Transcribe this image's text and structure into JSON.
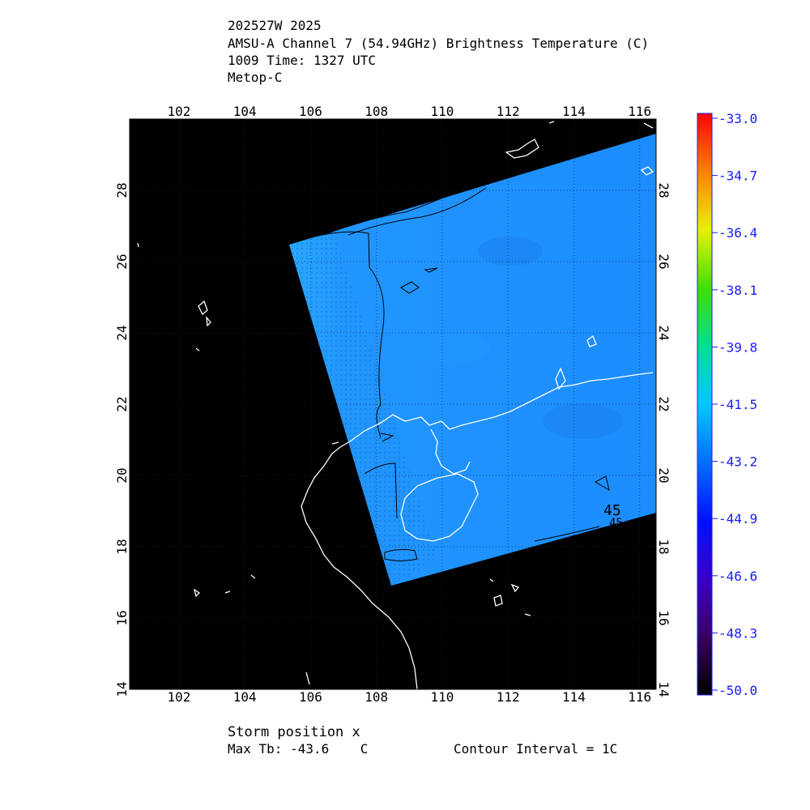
{
  "header": {
    "storm_id": "202527W 2025",
    "product": "AMSU-A Channel 7 (54.94GHz) Brightness Temperature (C)",
    "time": "1009 Time: 1327 UTC",
    "satellite": "Metop-C"
  },
  "map": {
    "lon_range": [
      100.5,
      116.5
    ],
    "lat_range": [
      14,
      30
    ],
    "lon_ticks": [
      "102",
      "104",
      "106",
      "108",
      "110",
      "112",
      "114",
      "116"
    ],
    "lat_ticks": [
      "14",
      "16",
      "18",
      "20",
      "22",
      "24",
      "26",
      "28"
    ],
    "background_color": "#000000",
    "swath_color": "#1f8fff",
    "coastline_color": "#ffffff",
    "contour_color": "#000000",
    "contour_labels": [
      "45",
      "45"
    ]
  },
  "colorbar": {
    "min": -50.0,
    "max": -33.0,
    "labels": [
      "-33.0",
      "-34.7",
      "-36.4",
      "-38.1",
      "-39.8",
      "-41.5",
      "-43.2",
      "-44.9",
      "-46.6",
      "-48.3",
      "-50.0"
    ]
  },
  "footer": {
    "storm_position": "Storm position x",
    "max_tb": "Max Tb: -43.6    C",
    "contour_interval": "Contour Interval = 1C"
  }
}
